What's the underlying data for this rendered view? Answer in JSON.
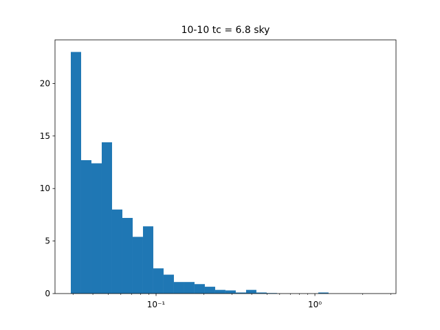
{
  "chart_data": {
    "type": "histogram",
    "title": "10-10 tc = 6.8 sky",
    "bins": [
      0.02905,
      0.03373,
      0.03917,
      0.04549,
      0.05282,
      0.06134,
      0.07123,
      0.08271,
      0.09604,
      0.11152,
      0.1295,
      0.1504,
      0.1746,
      0.2028,
      0.2355,
      0.2734,
      0.3175,
      0.3687,
      0.4281,
      0.4971,
      0.5773,
      0.6703,
      0.7784,
      0.9039,
      1.0496,
      1.2188,
      1.4153,
      1.6434,
      1.9084,
      2.216,
      2.5733
    ],
    "counts": [
      23,
      12.7,
      12.4,
      14.4,
      8.0,
      7.2,
      5.4,
      6.4,
      2.4,
      1.8,
      1.1,
      1.1,
      0.9,
      0.65,
      0.35,
      0.3,
      0.1,
      0.35,
      0.1,
      0.05,
      0,
      0,
      0,
      0,
      0.1,
      0,
      0,
      0,
      0,
      0
    ],
    "color": "#1f77b4",
    "xscale": "log",
    "xlim": [
      0.0231,
      3.24
    ],
    "xticks": [
      {
        "value": 0.1,
        "label": "10⁻¹"
      },
      {
        "value": 1,
        "label": "10⁰"
      }
    ],
    "xminorticks": [
      0.03,
      0.04,
      0.05,
      0.06,
      0.07,
      0.08,
      0.09,
      0.2,
      0.3,
      0.4,
      0.5,
      0.6,
      0.7,
      0.8,
      0.9,
      2,
      3
    ],
    "ylim": [
      0,
      24.15
    ],
    "yticks": [
      0,
      5,
      10,
      15,
      20
    ]
  }
}
